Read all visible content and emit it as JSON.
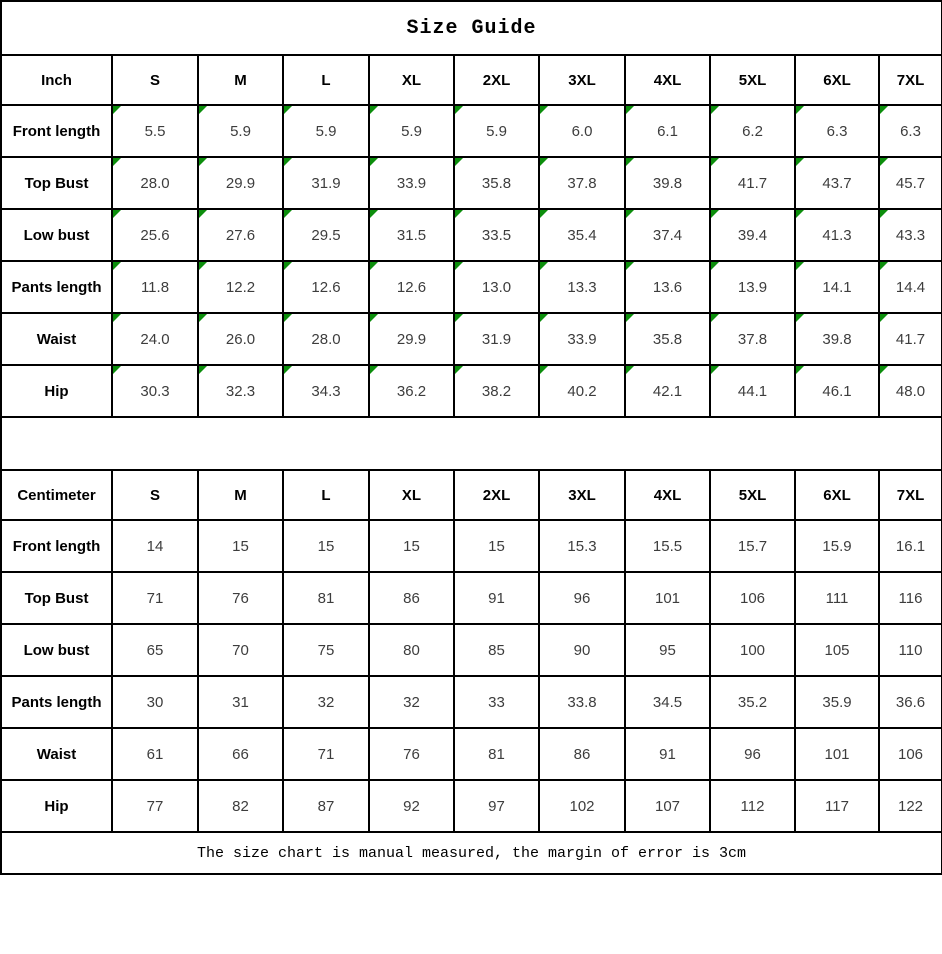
{
  "title": "Size Guide",
  "footer_note": "The size chart is manual measured, the margin of error is 3cm",
  "colors": {
    "border": "#000000",
    "indicator_green": "#0c8e0c",
    "value_text": "#3d3d3d",
    "label_text": "#000000"
  },
  "tables": [
    {
      "id": "inch",
      "unit_label": "Inch",
      "size_headers": [
        "S",
        "M",
        "L",
        "XL",
        "2XL",
        "3XL",
        "4XL",
        "5XL",
        "6XL",
        "7XL"
      ],
      "has_text_indicators": true,
      "rows": [
        {
          "label": "Front length",
          "values": [
            "5.5",
            "5.9",
            "5.9",
            "5.9",
            "5.9",
            "6.0",
            "6.1",
            "6.2",
            "6.3",
            "6.3"
          ]
        },
        {
          "label": "Top Bust",
          "values": [
            "28.0",
            "29.9",
            "31.9",
            "33.9",
            "35.8",
            "37.8",
            "39.8",
            "41.7",
            "43.7",
            "45.7"
          ]
        },
        {
          "label": "Low bust",
          "values": [
            "25.6",
            "27.6",
            "29.5",
            "31.5",
            "33.5",
            "35.4",
            "37.4",
            "39.4",
            "41.3",
            "43.3"
          ]
        },
        {
          "label": "Pants length",
          "values": [
            "11.8",
            "12.2",
            "12.6",
            "12.6",
            "13.0",
            "13.3",
            "13.6",
            "13.9",
            "14.1",
            "14.4"
          ]
        },
        {
          "label": "Waist",
          "values": [
            "24.0",
            "26.0",
            "28.0",
            "29.9",
            "31.9",
            "33.9",
            "35.8",
            "37.8",
            "39.8",
            "41.7"
          ]
        },
        {
          "label": "Hip",
          "values": [
            "30.3",
            "32.3",
            "34.3",
            "36.2",
            "38.2",
            "40.2",
            "42.1",
            "44.1",
            "46.1",
            "48.0"
          ]
        }
      ]
    },
    {
      "id": "centimeter",
      "unit_label": "Centimeter",
      "size_headers": [
        "S",
        "M",
        "L",
        "XL",
        "2XL",
        "3XL",
        "4XL",
        "5XL",
        "6XL",
        "7XL"
      ],
      "has_text_indicators": false,
      "rows": [
        {
          "label": "Front length",
          "values": [
            "14",
            "15",
            "15",
            "15",
            "15",
            "15.3",
            "15.5",
            "15.7",
            "15.9",
            "16.1"
          ]
        },
        {
          "label": "Top Bust",
          "values": [
            "71",
            "76",
            "81",
            "86",
            "91",
            "96",
            "101",
            "106",
            "111",
            "116"
          ]
        },
        {
          "label": "Low bust",
          "values": [
            "65",
            "70",
            "75",
            "80",
            "85",
            "90",
            "95",
            "100",
            "105",
            "110"
          ]
        },
        {
          "label": "Pants length",
          "values": [
            "30",
            "31",
            "32",
            "32",
            "33",
            "33.8",
            "34.5",
            "35.2",
            "35.9",
            "36.6"
          ]
        },
        {
          "label": "Waist",
          "values": [
            "61",
            "66",
            "71",
            "76",
            "81",
            "86",
            "91",
            "96",
            "101",
            "106"
          ]
        },
        {
          "label": "Hip",
          "values": [
            "77",
            "82",
            "87",
            "92",
            "97",
            "102",
            "107",
            "112",
            "117",
            "122"
          ]
        }
      ]
    }
  ]
}
